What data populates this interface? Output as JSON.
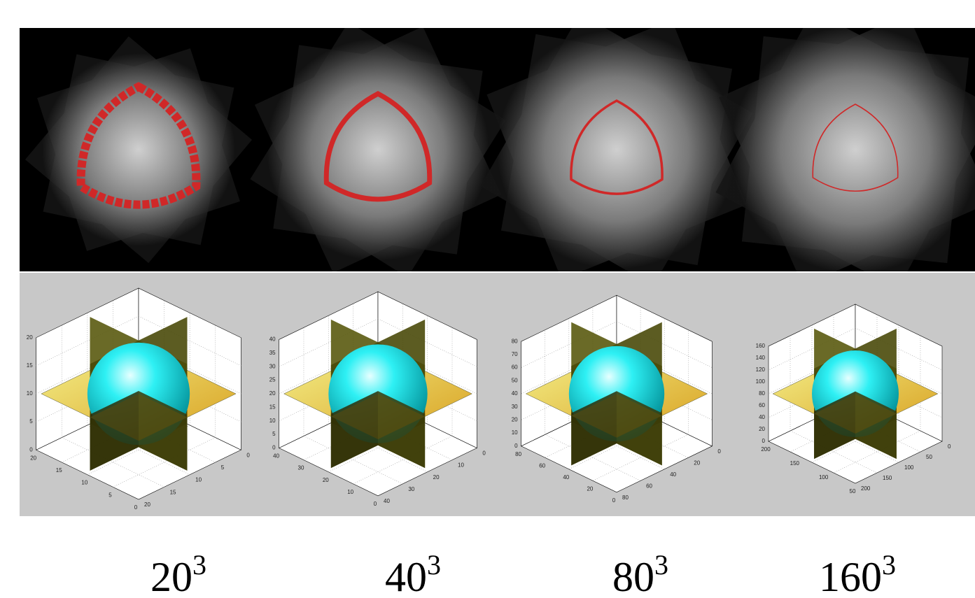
{
  "panels": [
    {
      "caption": {
        "base": "20",
        "exponent": "3"
      },
      "z_ticks": [
        0,
        5,
        10,
        15,
        20
      ],
      "left_ticks": [
        20,
        15,
        10,
        5,
        0
      ],
      "right_ticks": [
        0,
        5,
        10,
        15,
        20
      ]
    },
    {
      "caption": {
        "base": "40",
        "exponent": "3"
      },
      "z_ticks": [
        0,
        5,
        10,
        15,
        20,
        25,
        30,
        35,
        40
      ],
      "left_ticks": [
        40,
        30,
        20,
        10,
        0
      ],
      "right_ticks": [
        0,
        10,
        20,
        30,
        40
      ]
    },
    {
      "caption": {
        "base": "80",
        "exponent": "3"
      },
      "z_ticks": [
        0,
        10,
        20,
        30,
        40,
        50,
        60,
        70,
        80
      ],
      "left_ticks": [
        80,
        60,
        40,
        20,
        0
      ],
      "right_ticks": [
        0,
        20,
        40,
        60,
        80
      ]
    },
    {
      "caption": {
        "base": "160",
        "exponent": "3"
      },
      "z_ticks": [
        0,
        20,
        40,
        60,
        80,
        100,
        120,
        140,
        160
      ],
      "left_ticks": [
        200,
        150,
        100,
        50
      ],
      "right_ticks": [
        0,
        50,
        100,
        150,
        200
      ]
    }
  ]
}
